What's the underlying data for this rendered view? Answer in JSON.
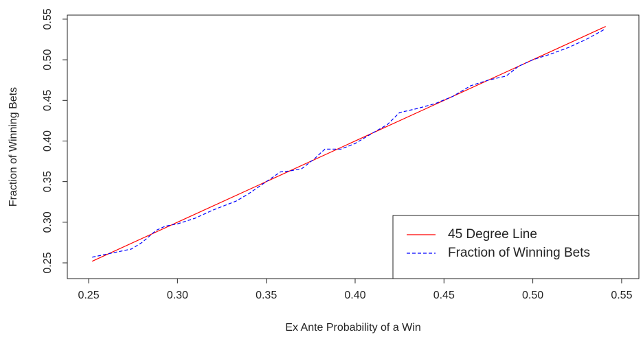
{
  "chart_data": {
    "type": "line",
    "x_label": "Ex Ante Probability of a Win",
    "y_label": "Fraction of Winning Bets",
    "xlim": [
      0.238,
      0.5597
    ],
    "ylim": [
      0.2306,
      0.555
    ],
    "xticks": [
      {
        "value": 0.25,
        "label": "0.25"
      },
      {
        "value": 0.3,
        "label": "0.30"
      },
      {
        "value": 0.35,
        "label": "0.35"
      },
      {
        "value": 0.4,
        "label": "0.40"
      },
      {
        "value": 0.45,
        "label": "0.45"
      },
      {
        "value": 0.5,
        "label": "0.50"
      },
      {
        "value": 0.55,
        "label": "0.55"
      }
    ],
    "yticks": [
      {
        "value": 0.25,
        "label": "0.25"
      },
      {
        "value": 0.3,
        "label": "0.30"
      },
      {
        "value": 0.35,
        "label": "0.35"
      },
      {
        "value": 0.4,
        "label": "0.40"
      },
      {
        "value": 0.45,
        "label": "0.45"
      },
      {
        "value": 0.5,
        "label": "0.50"
      },
      {
        "value": 0.55,
        "label": "0.55"
      }
    ],
    "legend_position": "bottomright",
    "series": [
      {
        "name": "45 Degree Line",
        "color": "#ff0000",
        "dashed": false,
        "x": [
          0.252,
          0.541
        ],
        "values": [
          0.252,
          0.541
        ]
      },
      {
        "name": "Fraction of Winning Bets",
        "color": "#0000ff",
        "dashed": true,
        "x": [
          0.252,
          0.263,
          0.274,
          0.28,
          0.288,
          0.293,
          0.3,
          0.31,
          0.32,
          0.333,
          0.34,
          0.35,
          0.358,
          0.363,
          0.37,
          0.377,
          0.383,
          0.392,
          0.4,
          0.41,
          0.418,
          0.425,
          0.435,
          0.445,
          0.455,
          0.465,
          0.475,
          0.485,
          0.492,
          0.5,
          0.51,
          0.52,
          0.53,
          0.54
        ],
        "values": [
          0.257,
          0.262,
          0.267,
          0.275,
          0.29,
          0.295,
          0.298,
          0.305,
          0.315,
          0.326,
          0.335,
          0.35,
          0.362,
          0.363,
          0.366,
          0.378,
          0.39,
          0.39,
          0.397,
          0.41,
          0.42,
          0.435,
          0.44,
          0.446,
          0.455,
          0.468,
          0.475,
          0.48,
          0.492,
          0.5,
          0.507,
          0.515,
          0.525,
          0.537
        ]
      }
    ]
  }
}
